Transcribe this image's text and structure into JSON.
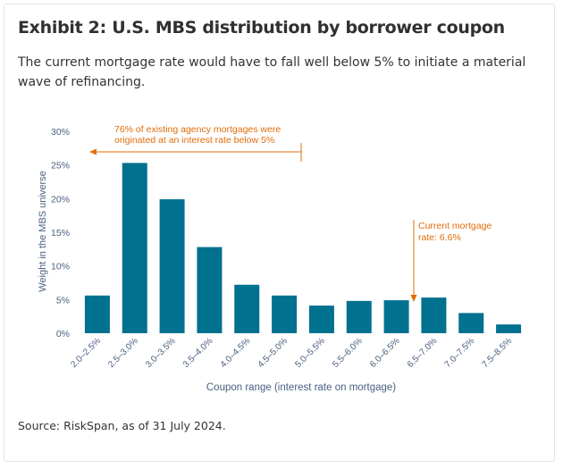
{
  "header": {
    "title": "Exhibit 2: U.S. MBS distribution by borrower coupon",
    "subtitle": "The current mortgage rate would have to fall well below 5% to initiate a material wave of refinancing."
  },
  "source": "Source: RiskSpan, as of 31 July 2024.",
  "colors": {
    "bar": "#00718f",
    "annotation": "#e36c0a",
    "axis_text": "#4a6080"
  },
  "chart_data": {
    "type": "bar",
    "title": "",
    "xlabel": "Coupon range (interest rate on mortgage)",
    "ylabel": "Weight in the MBS universe",
    "categories": [
      "2.0–2.5%",
      "2.5–3.0%",
      "3.0–3.5%",
      "3.5–4.0%",
      "4.0–4.5%",
      "4.5–5.0%",
      "5.0–5.5%",
      "5.5–6.0%",
      "6.0–6.5%",
      "6.5–7.0%",
      "7.0–7.5%",
      "7.5–8.5%"
    ],
    "values": [
      5.6,
      25.3,
      19.9,
      12.8,
      7.2,
      5.6,
      4.1,
      4.8,
      4.9,
      5.3,
      3.0,
      1.3
    ],
    "ylim": [
      0,
      30
    ],
    "yticks": [
      0,
      5,
      10,
      15,
      20,
      25,
      30
    ],
    "ytick_labels": [
      "0%",
      "5%",
      "10%",
      "15%",
      "20%",
      "25%",
      "30%"
    ],
    "grid": false,
    "legend": "none",
    "annotations": [
      {
        "text_lines": [
          "76% of existing agency mortgages were",
          "originated at an interest rate below 5%"
        ]
      },
      {
        "text_lines": [
          "Current mortgage",
          "rate: 6.6%"
        ]
      }
    ]
  }
}
